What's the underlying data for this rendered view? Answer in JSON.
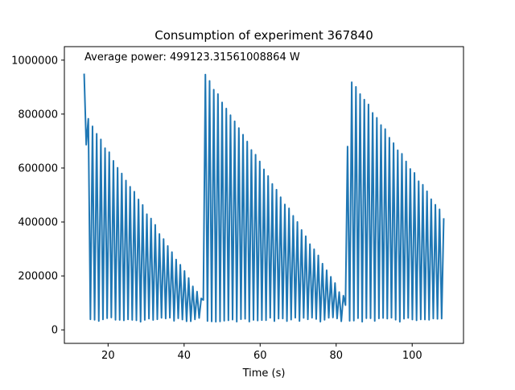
{
  "chart_data": {
    "type": "line",
    "title": "Consumption of experiment 367840",
    "xlabel": "Time (s)",
    "ylabel": "",
    "xlim": [
      8.5,
      113.5
    ],
    "ylim": [
      -50000,
      1050000
    ],
    "xticks": [
      20,
      40,
      60,
      80,
      100
    ],
    "yticks": [
      0,
      200000,
      400000,
      600000,
      800000,
      1000000
    ],
    "xtick_labels": [
      "20",
      "40",
      "60",
      "80",
      "100"
    ],
    "ytick_labels": [
      "0",
      "200000",
      "400000",
      "600000",
      "800000",
      "1000000"
    ],
    "annotation": "Average power: 499123.31561008864 W",
    "grid": false,
    "series": [
      {
        "name": "",
        "color": "#1f77b4",
        "pattern": "square-wave oscillation ~1.1 s period between a high level and a low level; envelope edges drift linearly",
        "x": [
          13.7,
          13.95,
          14.2,
          14.5,
          44.6,
          45.3,
          45.6,
          82.2,
          82.8,
          83.1,
          108.5
        ],
        "hi": [
          950000,
          880000,
          800000,
          790000,
          120000,
          150000,
          950000,
          120000,
          150000,
          950000,
          420000
        ],
        "lo": [
          15000,
          880000,
          800000,
          30000,
          30000,
          150000,
          30000,
          30000,
          150000,
          30000,
          30000
        ],
        "period": 1.1
      }
    ]
  }
}
